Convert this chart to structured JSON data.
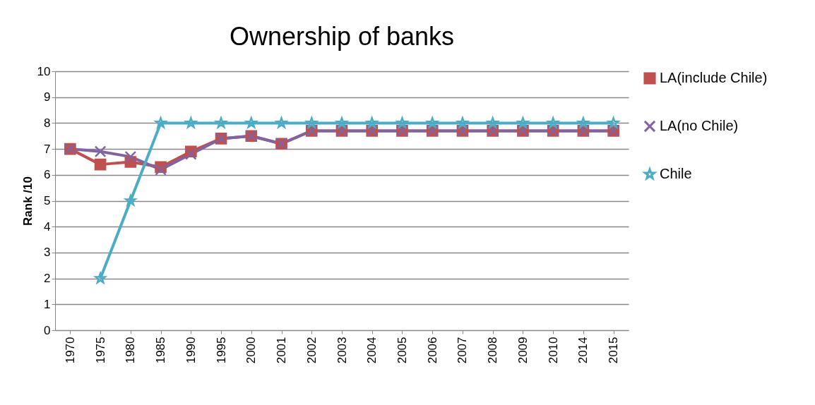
{
  "chart_data": {
    "type": "line",
    "title": "Ownership of banks",
    "ylabel": "Rank /10",
    "categories": [
      "1970",
      "1975",
      "1980",
      "1985",
      "1990",
      "1995",
      "2000",
      "2001",
      "2002",
      "2003",
      "2004",
      "2005",
      "2006",
      "2007",
      "2008",
      "2009",
      "2010",
      "2014",
      "2015"
    ],
    "series": [
      {
        "name": "LA(include Chile)",
        "color": "#c0504d",
        "marker": "square",
        "values": [
          7.0,
          6.4,
          6.5,
          6.3,
          6.9,
          7.4,
          7.5,
          7.2,
          7.7,
          7.7,
          7.7,
          7.7,
          7.7,
          7.7,
          7.7,
          7.7,
          7.7,
          7.7,
          7.7
        ]
      },
      {
        "name": "LA(no Chile)",
        "color": "#8064a2",
        "marker": "cross",
        "values": [
          7.0,
          6.9,
          6.7,
          6.2,
          6.8,
          7.4,
          7.5,
          7.2,
          7.7,
          7.7,
          7.7,
          7.7,
          7.7,
          7.7,
          7.7,
          7.7,
          7.7,
          7.7,
          7.7
        ]
      },
      {
        "name": "Chile",
        "color": "#4bacc6",
        "marker": "star",
        "values": [
          null,
          2,
          5,
          8,
          8,
          8,
          8,
          8,
          8,
          8,
          8,
          8,
          8,
          8,
          8,
          8,
          8,
          8,
          8
        ]
      }
    ],
    "ylim": [
      0,
      10
    ],
    "yticks": [
      0,
      1,
      2,
      3,
      4,
      5,
      6,
      7,
      8,
      9,
      10
    ],
    "grid": "y",
    "legend": "right"
  }
}
